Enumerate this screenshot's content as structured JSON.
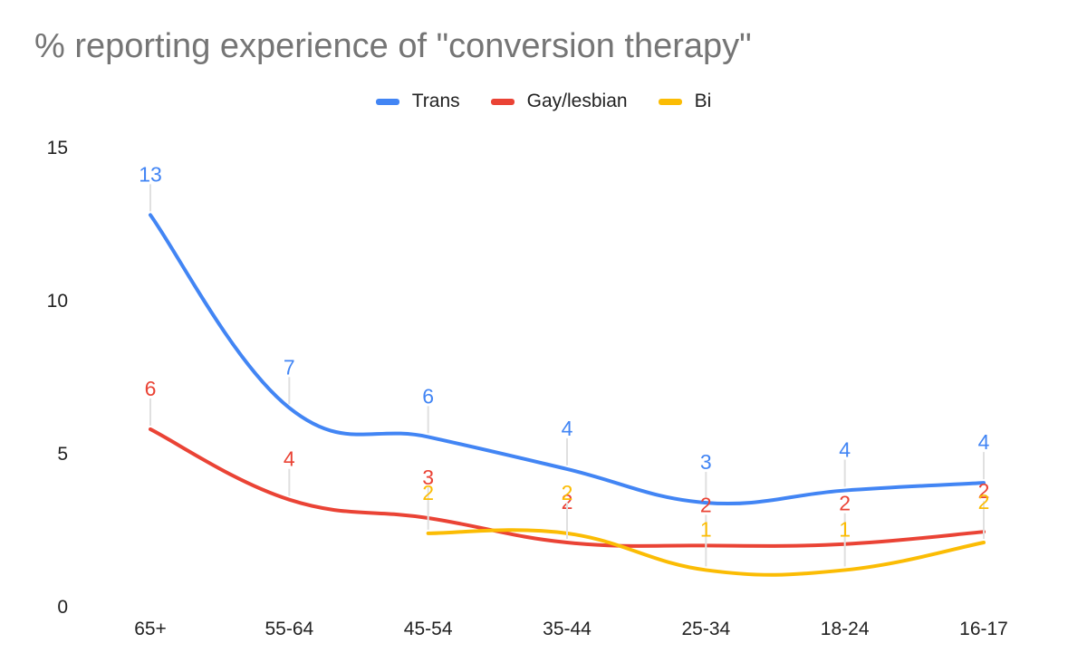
{
  "chart_data": {
    "type": "line",
    "title": "% reporting experience of \"conversion therapy\"",
    "categories": [
      "65+",
      "55-64",
      "45-54",
      "35-44",
      "25-34",
      "18-24",
      "16-17"
    ],
    "series": [
      {
        "name": "Trans",
        "color": "#4285f4",
        "values": [
          12.8,
          6.5,
          5.55,
          4.5,
          3.4,
          3.8,
          4.05
        ],
        "labels": [
          "13",
          "7",
          "6",
          "4",
          "3",
          "4",
          "4"
        ]
      },
      {
        "name": "Gay/lesbian",
        "color": "#ea4335",
        "values": [
          5.8,
          3.5,
          2.9,
          2.1,
          2.0,
          2.05,
          2.45
        ],
        "labels": [
          "6",
          "4",
          "3",
          "2",
          "2",
          "2",
          "2"
        ]
      },
      {
        "name": "Bi",
        "color": "#fbbc04",
        "values": [
          null,
          null,
          2.4,
          2.4,
          1.2,
          1.2,
          2.1
        ],
        "labels": [
          "",
          "",
          "2",
          "2",
          "1",
          "1",
          "2"
        ]
      }
    ],
    "yticks": [
      0,
      5,
      10,
      15
    ],
    "ylim": [
      0,
      15
    ],
    "xlabel": "",
    "ylabel": "",
    "grid": false,
    "legend": "top-center"
  }
}
